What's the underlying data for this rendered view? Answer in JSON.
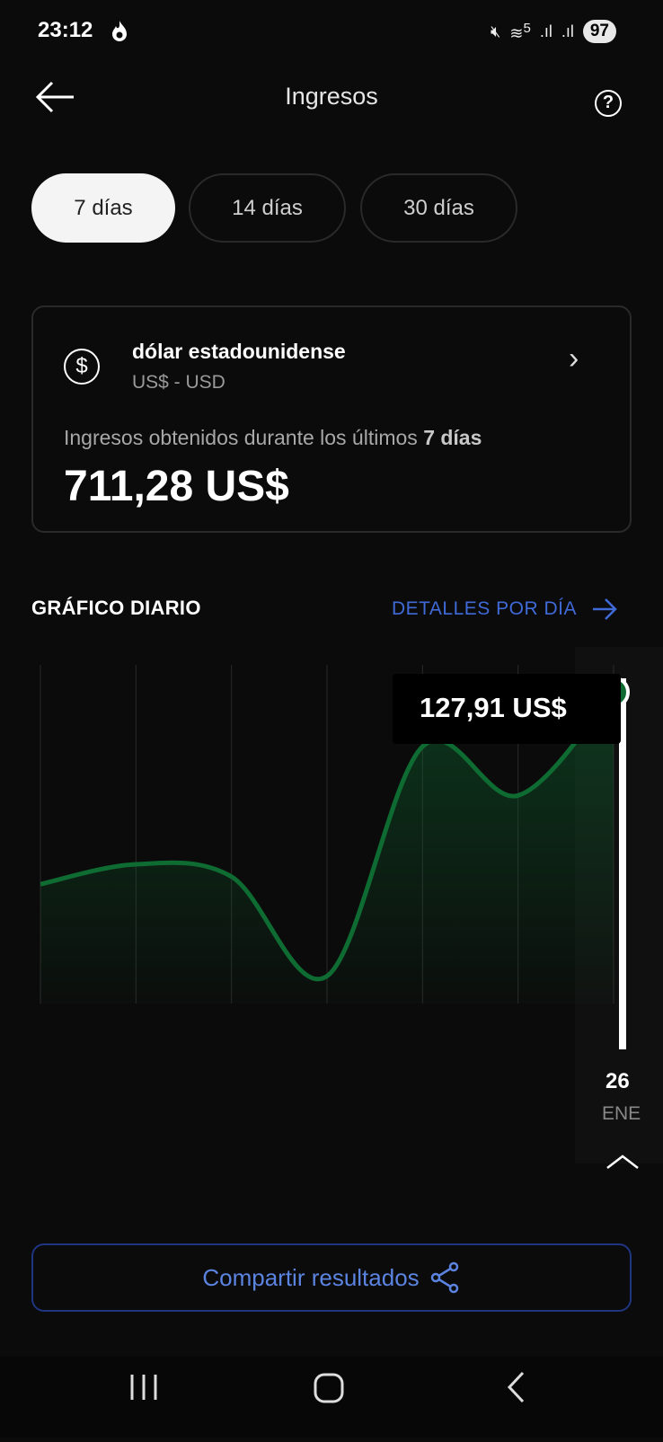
{
  "status": {
    "time": "23:12",
    "battery": "97",
    "wifi_label": "5"
  },
  "header": {
    "title": "Ingresos",
    "back_icon": "arrow-left-icon",
    "help_icon": "question-icon",
    "help_glyph": "?"
  },
  "periods": [
    {
      "label": "7 días",
      "active": true
    },
    {
      "label": "14 días",
      "active": false
    },
    {
      "label": "30 días",
      "active": false
    }
  ],
  "card": {
    "currency_symbol": "$",
    "currency_name": "dólar estadounidense",
    "currency_code": "US$ - USD",
    "description_prefix": "Ingresos obtenidos durante los últimos ",
    "description_period": "7 días",
    "total": "711,28 US$"
  },
  "section": {
    "title": "GRÁFICO DIARIO",
    "details_link": "DETALLES POR DÍA"
  },
  "chart_data": {
    "type": "area",
    "series": [
      {
        "values": [
          92.2,
          95.9,
          93.6,
          75.1,
          117.8,
          108.7,
          127.91
        ]
      }
    ],
    "selected_index": 6,
    "selected_value_label": "127,91 US$",
    "selected_day": "26",
    "selected_month": "ENE",
    "ylim": [
      70,
      133
    ],
    "line_color": "#0e6b32",
    "grid": true
  },
  "share": {
    "label": "Compartir resultados"
  },
  "colors": {
    "accent": "#3f6ad8",
    "line": "#0e6b32",
    "background": "#0b0b0b"
  }
}
